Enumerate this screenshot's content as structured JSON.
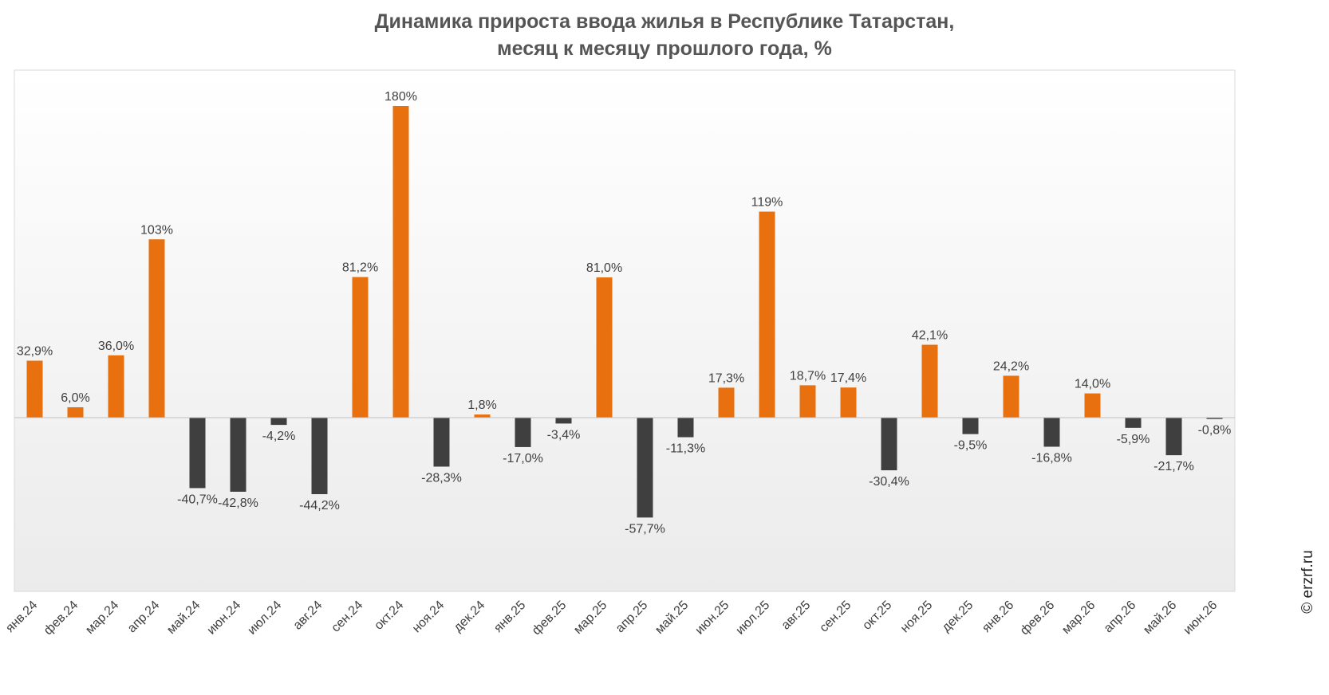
{
  "chart_data": {
    "type": "bar",
    "title": "Динамика прироста ввода жилья в Республике Татарстан,",
    "subtitle": "месяц к месяцу прошлого года, %",
    "categories": [
      "янв.24",
      "фев.24",
      "мар.24",
      "апр.24",
      "май.24",
      "июн.24",
      "июл.24",
      "авг.24",
      "сен.24",
      "окт.24",
      "ноя.24",
      "дек.24",
      "янв.25",
      "фев.25",
      "мар.25",
      "апр.25",
      "май.25",
      "июн.25",
      "июл.25",
      "авг.25",
      "сен.25",
      "окт.25",
      "ноя.25",
      "дек.25",
      "янв.26",
      "фев.26",
      "мар.26",
      "апр.26",
      "май.26",
      "июн.26"
    ],
    "values": [
      32.9,
      6.0,
      36.0,
      103,
      -40.7,
      -42.8,
      -4.2,
      -44.2,
      81.2,
      180,
      -28.3,
      1.8,
      -17.0,
      -3.4,
      81.0,
      -57.7,
      -11.3,
      17.3,
      119,
      18.7,
      17.4,
      -30.4,
      42.1,
      -9.5,
      24.2,
      -16.8,
      14.0,
      -5.9,
      -21.7,
      -0.8
    ],
    "labels": [
      "32,9%",
      "6,0%",
      "36,0%",
      "103%",
      "-40,7%",
      "-42,8%",
      "-4,2%",
      "-44,2%",
      "81,2%",
      "180%",
      "-28,3%",
      "1,8%",
      "-17,0%",
      "-3,4%",
      "81,0%",
      "-57,7%",
      "-11,3%",
      "17,3%",
      "119%",
      "18,7%",
      "17,4%",
      "-30,4%",
      "42,1%",
      "-9,5%",
      "24,2%",
      "-16,8%",
      "14,0%",
      "-5,9%",
      "-21,7%",
      "-0,8%"
    ],
    "ylim": [
      -100,
      200
    ],
    "grid": false,
    "legend": "none",
    "colors": {
      "positive": "#E8700E",
      "negative": "#3F3F3F",
      "axis": "#C0C0C0",
      "label": "#404040",
      "plot_bg_top": "#FFFFFF",
      "plot_bg_bottom": "#EBEBEB"
    }
  },
  "watermark": "© erzrf.ru"
}
